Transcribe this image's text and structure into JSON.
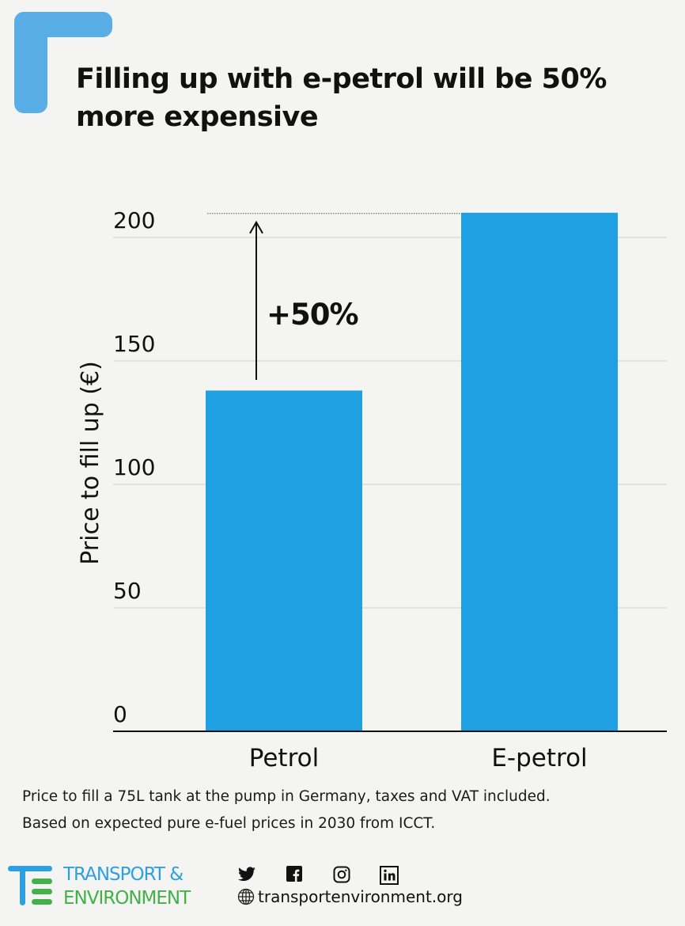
{
  "title": "Filling up with e-petrol will be 50% more expensive",
  "chart_data": {
    "type": "bar",
    "title": "Filling up with e-petrol will be 50% more expensive",
    "categories": [
      "Petrol",
      "E-petrol"
    ],
    "values": [
      138,
      210
    ],
    "ylabel": "Price to fill up (€)",
    "xlabel": "",
    "ylim": [
      0,
      225
    ],
    "yticks": [
      0,
      50,
      100,
      150,
      200
    ],
    "grid": true,
    "bar_color": "#1ea0e2",
    "annotation": "+50%"
  },
  "caption": {
    "line1": "Price to fill a 75L tank at the pump in Germany, taxes and VAT included.",
    "line2": "Based on expected pure e-fuel prices in 2030 from ICCT."
  },
  "footer": {
    "brand_line1": "TRANSPORT &",
    "brand_line2": "ENVIRONMENT",
    "brand_colors": {
      "blue": "#2e9fe0",
      "green": "#43b04a"
    },
    "social_icons": [
      "twitter-icon",
      "facebook-icon",
      "instagram-icon",
      "linkedin-icon"
    ],
    "website": "transportenvironment.org"
  }
}
